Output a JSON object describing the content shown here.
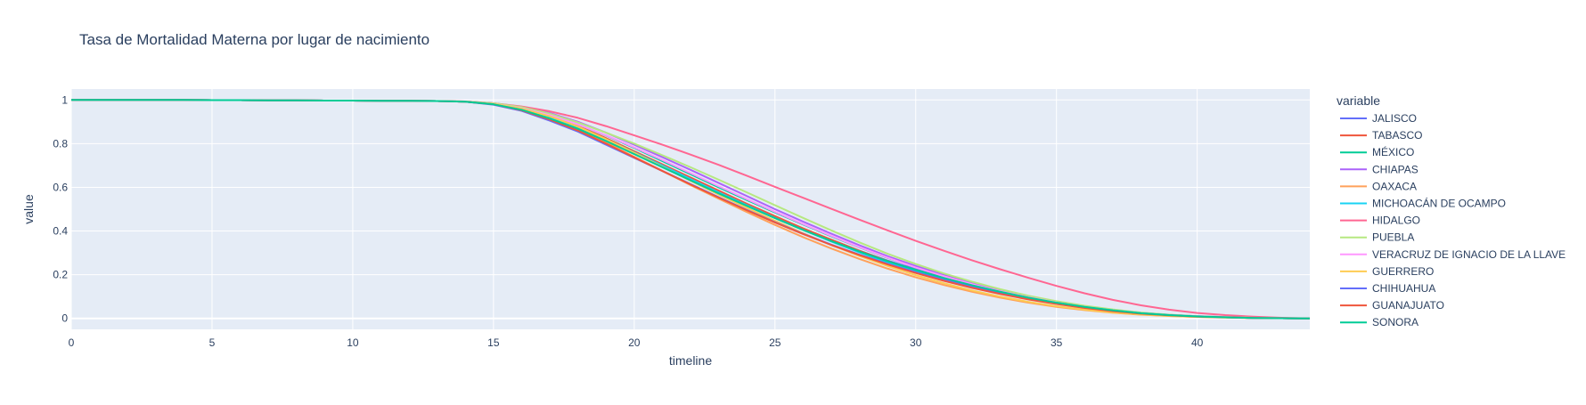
{
  "chart_data": {
    "type": "line",
    "title": "Tasa de Mortalidad Materna por lugar de nacimiento",
    "xlabel": "timeline",
    "ylabel": "value",
    "xlim": [
      0,
      44
    ],
    "ylim": [
      -0.05,
      1.05
    ],
    "xticks": [
      0,
      5,
      10,
      15,
      20,
      25,
      30,
      35,
      40
    ],
    "xtick_labels": [
      "0",
      "5",
      "10",
      "15",
      "20",
      "25",
      "30",
      "35",
      "40"
    ],
    "yticks": [
      0,
      0.2,
      0.4,
      0.6,
      0.8,
      1
    ],
    "ytick_labels": [
      "0",
      "0.2",
      "0.4",
      "0.6",
      "0.8",
      "1"
    ],
    "grid": true,
    "plot_background": "#E5ECF6",
    "legend": {
      "title": "variable",
      "placement": "right"
    },
    "x": [
      0,
      1,
      2,
      3,
      4,
      5,
      6,
      7,
      8,
      9,
      10,
      11,
      12,
      13,
      14,
      15,
      16,
      17,
      18,
      19,
      20,
      21,
      22,
      23,
      24,
      25,
      26,
      27,
      28,
      29,
      30,
      31,
      32,
      33,
      34,
      35,
      36,
      37,
      38,
      39,
      40,
      41,
      42,
      43,
      44
    ],
    "series": [
      {
        "name": "JALISCO",
        "color": "#636EFA",
        "values": [
          1,
          1,
          1,
          1,
          1,
          0.999,
          0.999,
          0.998,
          0.998,
          0.997,
          0.997,
          0.996,
          0.996,
          0.995,
          0.992,
          0.98,
          0.955,
          0.915,
          0.87,
          0.815,
          0.755,
          0.695,
          0.635,
          0.575,
          0.52,
          0.465,
          0.41,
          0.36,
          0.31,
          0.265,
          0.225,
          0.19,
          0.155,
          0.125,
          0.098,
          0.075,
          0.055,
          0.038,
          0.025,
          0.016,
          0.01,
          0.006,
          0.003,
          0.001,
          0
        ]
      },
      {
        "name": "TABASCO",
        "color": "#EF553B",
        "values": [
          1,
          1,
          1,
          1,
          1,
          0.999,
          0.999,
          0.998,
          0.998,
          0.997,
          0.997,
          0.996,
          0.996,
          0.995,
          0.992,
          0.982,
          0.96,
          0.925,
          0.88,
          0.825,
          0.765,
          0.705,
          0.645,
          0.585,
          0.525,
          0.468,
          0.412,
          0.36,
          0.31,
          0.263,
          0.22,
          0.182,
          0.148,
          0.118,
          0.092,
          0.07,
          0.051,
          0.035,
          0.023,
          0.015,
          0.009,
          0.005,
          0.002,
          0.001,
          0
        ]
      },
      {
        "name": "MÉXICO",
        "color": "#00CC96",
        "values": [
          1,
          1,
          1,
          1,
          1,
          0.999,
          0.999,
          0.998,
          0.998,
          0.997,
          0.997,
          0.996,
          0.996,
          0.995,
          0.992,
          0.983,
          0.962,
          0.93,
          0.888,
          0.837,
          0.78,
          0.72,
          0.66,
          0.6,
          0.542,
          0.485,
          0.43,
          0.376,
          0.325,
          0.277,
          0.233,
          0.193,
          0.157,
          0.125,
          0.097,
          0.073,
          0.053,
          0.037,
          0.024,
          0.015,
          0.009,
          0.005,
          0.002,
          0.001,
          0
        ]
      },
      {
        "name": "CHIAPAS",
        "color": "#AB63FA",
        "values": [
          1,
          1,
          1,
          1,
          1,
          0.999,
          0.999,
          0.998,
          0.998,
          0.997,
          0.997,
          0.996,
          0.996,
          0.995,
          0.993,
          0.985,
          0.968,
          0.94,
          0.9,
          0.85,
          0.795,
          0.738,
          0.68,
          0.62,
          0.56,
          0.5,
          0.443,
          0.388,
          0.335,
          0.285,
          0.24,
          0.2,
          0.163,
          0.13,
          0.101,
          0.077,
          0.056,
          0.039,
          0.026,
          0.016,
          0.01,
          0.006,
          0.003,
          0.001,
          0
        ]
      },
      {
        "name": "OAXACA",
        "color": "#FFA15A",
        "values": [
          1,
          1,
          1,
          1,
          1,
          0.999,
          0.999,
          0.998,
          0.998,
          0.997,
          0.997,
          0.996,
          0.996,
          0.995,
          0.992,
          0.98,
          0.955,
          0.915,
          0.865,
          0.805,
          0.74,
          0.675,
          0.61,
          0.548,
          0.487,
          0.428,
          0.372,
          0.32,
          0.272,
          0.228,
          0.188,
          0.153,
          0.122,
          0.095,
          0.072,
          0.053,
          0.038,
          0.026,
          0.017,
          0.011,
          0.007,
          0.004,
          0.002,
          0.001,
          0
        ]
      },
      {
        "name": "MICHOACÁN DE OCAMPO",
        "color": "#19D3F3",
        "values": [
          1,
          1,
          1,
          1,
          1,
          0.999,
          0.999,
          0.998,
          0.998,
          0.997,
          0.997,
          0.996,
          0.996,
          0.995,
          0.992,
          0.98,
          0.957,
          0.92,
          0.875,
          0.82,
          0.76,
          0.7,
          0.638,
          0.577,
          0.518,
          0.46,
          0.405,
          0.352,
          0.302,
          0.256,
          0.215,
          0.178,
          0.145,
          0.116,
          0.09,
          0.068,
          0.05,
          0.035,
          0.023,
          0.015,
          0.009,
          0.005,
          0.002,
          0.001,
          0
        ]
      },
      {
        "name": "HIDALGO",
        "color": "#FF6692",
        "values": [
          1,
          1,
          1,
          1,
          1,
          0.999,
          0.999,
          0.998,
          0.998,
          0.997,
          0.997,
          0.996,
          0.996,
          0.995,
          0.993,
          0.985,
          0.97,
          0.948,
          0.918,
          0.88,
          0.838,
          0.795,
          0.75,
          0.703,
          0.653,
          0.602,
          0.552,
          0.502,
          0.452,
          0.403,
          0.355,
          0.31,
          0.266,
          0.225,
          0.186,
          0.149,
          0.115,
          0.085,
          0.06,
          0.04,
          0.025,
          0.015,
          0.008,
          0.003,
          0
        ]
      },
      {
        "name": "PUEBLA",
        "color": "#B6E880",
        "values": [
          1,
          1,
          1,
          1,
          1,
          0.999,
          0.999,
          0.998,
          0.998,
          0.997,
          0.997,
          0.996,
          0.996,
          0.995,
          0.993,
          0.985,
          0.967,
          0.937,
          0.897,
          0.85,
          0.8,
          0.747,
          0.692,
          0.635,
          0.577,
          0.518,
          0.46,
          0.403,
          0.348,
          0.296,
          0.249,
          0.206,
          0.168,
          0.134,
          0.104,
          0.079,
          0.058,
          0.041,
          0.027,
          0.017,
          0.01,
          0.006,
          0.003,
          0.001,
          0
        ]
      },
      {
        "name": "VERACRUZ DE IGNACIO DE LA LLAVE",
        "color": "#FF97FF",
        "values": [
          1,
          1,
          1,
          1,
          1,
          0.999,
          0.999,
          0.998,
          0.998,
          0.997,
          0.997,
          0.996,
          0.996,
          0.995,
          0.992,
          0.982,
          0.962,
          0.93,
          0.888,
          0.838,
          0.783,
          0.725,
          0.665,
          0.605,
          0.546,
          0.488,
          0.432,
          0.378,
          0.326,
          0.278,
          0.233,
          0.193,
          0.157,
          0.125,
          0.097,
          0.073,
          0.053,
          0.037,
          0.024,
          0.015,
          0.009,
          0.005,
          0.002,
          0.001,
          0
        ]
      },
      {
        "name": "GUERRERO",
        "color": "#FECB52",
        "values": [
          1,
          1,
          1,
          1,
          1,
          0.999,
          0.999,
          0.998,
          0.998,
          0.997,
          0.997,
          0.996,
          0.996,
          0.995,
          0.992,
          0.982,
          0.96,
          0.925,
          0.878,
          0.82,
          0.758,
          0.694,
          0.63,
          0.567,
          0.506,
          0.447,
          0.39,
          0.336,
          0.286,
          0.24,
          0.198,
          0.161,
          0.128,
          0.1,
          0.076,
          0.056,
          0.04,
          0.027,
          0.018,
          0.011,
          0.007,
          0.004,
          0.002,
          0.001,
          0
        ]
      },
      {
        "name": "CHIHUAHUA",
        "color": "#636EFA",
        "values": [
          1,
          1,
          1,
          1,
          1,
          0.999,
          0.999,
          0.998,
          0.998,
          0.997,
          0.997,
          0.996,
          0.996,
          0.995,
          0.992,
          0.978,
          0.95,
          0.905,
          0.855,
          0.795,
          0.735,
          0.675,
          0.615,
          0.555,
          0.497,
          0.441,
          0.388,
          0.338,
          0.292,
          0.25,
          0.212,
          0.177,
          0.146,
          0.118,
          0.093,
          0.071,
          0.052,
          0.036,
          0.024,
          0.015,
          0.009,
          0.005,
          0.002,
          0.001,
          0
        ]
      },
      {
        "name": "GUANAJUATO",
        "color": "#EF553B",
        "values": [
          1,
          1,
          1,
          1,
          1,
          0.999,
          0.999,
          0.998,
          0.998,
          0.997,
          0.997,
          0.996,
          0.996,
          0.995,
          0.992,
          0.98,
          0.953,
          0.91,
          0.86,
          0.8,
          0.737,
          0.675,
          0.613,
          0.553,
          0.495,
          0.439,
          0.386,
          0.336,
          0.29,
          0.247,
          0.208,
          0.172,
          0.14,
          0.112,
          0.087,
          0.066,
          0.048,
          0.033,
          0.022,
          0.014,
          0.008,
          0.005,
          0.002,
          0.001,
          0
        ]
      },
      {
        "name": "SONORA",
        "color": "#00CC96",
        "values": [
          1,
          1,
          1,
          1,
          1,
          0.999,
          0.999,
          0.998,
          0.998,
          0.997,
          0.997,
          0.996,
          0.996,
          0.995,
          0.992,
          0.98,
          0.955,
          0.915,
          0.868,
          0.812,
          0.752,
          0.692,
          0.632,
          0.572,
          0.515,
          0.459,
          0.405,
          0.354,
          0.306,
          0.262,
          0.222,
          0.185,
          0.152,
          0.122,
          0.095,
          0.072,
          0.053,
          0.037,
          0.024,
          0.015,
          0.009,
          0.005,
          0.002,
          0.001,
          0
        ]
      }
    ]
  }
}
